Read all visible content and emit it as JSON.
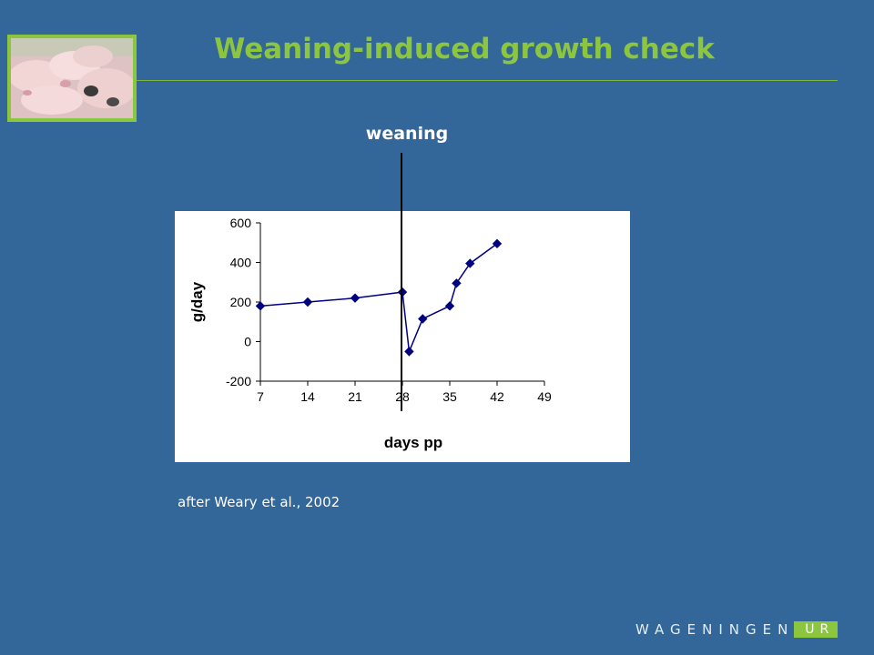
{
  "slide": {
    "title": "Weaning-induced growth check",
    "weaning_label": "weaning",
    "source": "after Weary et al., 2002",
    "logo_main": "WAGENINGEN",
    "logo_accent": "UR",
    "accent_color": "#8cc63f",
    "background_color": "#336699"
  },
  "chart_data": {
    "type": "line",
    "title": "",
    "xlabel": "days pp",
    "ylabel": "g/day",
    "xlim": [
      7,
      49
    ],
    "ylim": [
      -200,
      600
    ],
    "x_ticks": [
      7,
      14,
      21,
      28,
      35,
      42,
      49
    ],
    "y_ticks": [
      -200,
      0,
      200,
      400,
      600
    ],
    "grid": false,
    "marker": "diamond",
    "line_color": "#000080",
    "series": [
      {
        "x": [
          7,
          14,
          21,
          28,
          29,
          31,
          35,
          36,
          38,
          42
        ],
        "y": [
          180,
          200,
          220,
          250,
          -50,
          115,
          180,
          295,
          395,
          495
        ]
      }
    ],
    "annotations": [
      {
        "type": "vertical_line",
        "x": 28,
        "label": "weaning"
      }
    ]
  }
}
